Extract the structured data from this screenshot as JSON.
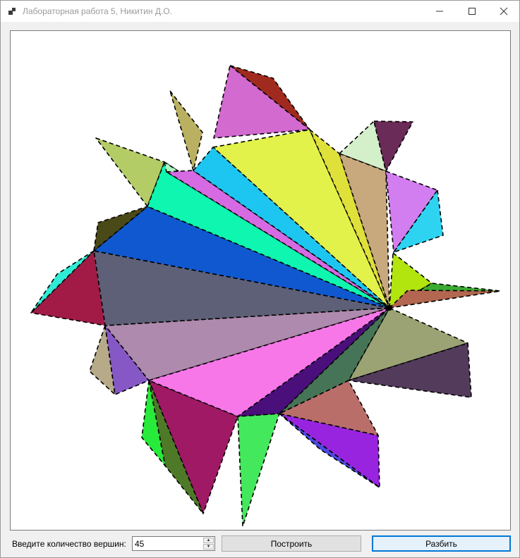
{
  "window": {
    "title": "Лабораторная работа 5, Никитин Д.О.",
    "controls": [
      "minimize-icon",
      "maximize-icon",
      "close-icon"
    ]
  },
  "form": {
    "vertex_label": "Введите количество вершин:",
    "vertex_value": "45",
    "build_button": "Построить",
    "split_button": "Разбить"
  },
  "canvas": {
    "background": "#ffffff",
    "polygon_colors": [
      "#a12a1e",
      "#d26ad0",
      "#bab062",
      "#e2f24a",
      "#dfe03a",
      "#d4f0ca",
      "#6b2b58",
      "#c8a87d",
      "#d37ef0",
      "#2fd3f2",
      "#b2e40d",
      "#3bab31",
      "#b36650",
      "#9ba374",
      "#533b5c",
      "#edfa06",
      "#9824e0",
      "#4a49e2",
      "#b96e6a",
      "#44e85c",
      "#9f1965",
      "#4e7a28",
      "#27ea3a",
      "#b6aa89",
      "#8658c6",
      "#ae8aae",
      "#5d6077",
      "#a21b46",
      "#30ebd5",
      "#0f58d0",
      "#4a4918",
      "#b3cc66",
      "#0ef6b0",
      "#acf8c1",
      "#d66ae3",
      "#1cc6f0",
      "#f777e8",
      "#4a0f7a",
      "#457456"
    ]
  }
}
